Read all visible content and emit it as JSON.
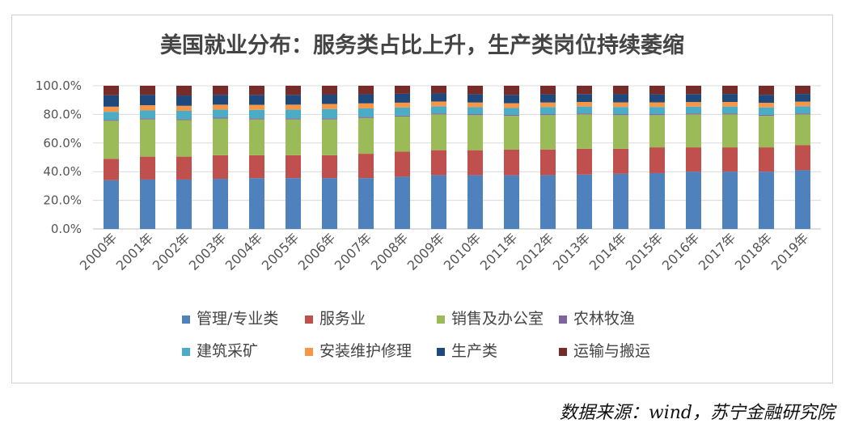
{
  "chart_data": {
    "type": "bar",
    "stacked": true,
    "percent": true,
    "title": "美国就业分布：服务类占比上升，生产类岗位持续萎缩",
    "categories": [
      "2000年",
      "2001年",
      "2002年",
      "2003年",
      "2004年",
      "2005年",
      "2006年",
      "2007年",
      "2008年",
      "2009年",
      "2010年",
      "2011年",
      "2012年",
      "2013年",
      "2014年",
      "2015年",
      "2016年",
      "2017年",
      "2018年",
      "2019年"
    ],
    "yticks": [
      "0.0%",
      "20.0%",
      "40.0%",
      "60.0%",
      "80.0%",
      "100.0%"
    ],
    "ylim": [
      0,
      100
    ],
    "grid": true,
    "legend_position": "bottom",
    "series": [
      {
        "name": "管理/专业类",
        "color": "#4f81bd",
        "values": [
          34,
          34.5,
          34.5,
          35,
          35.5,
          35.5,
          35.5,
          35.5,
          36.5,
          37.5,
          37.5,
          37.5,
          37.5,
          38,
          38.5,
          39,
          40,
          40,
          40,
          41
        ]
      },
      {
        "name": "服务业",
        "color": "#c0504d",
        "values": [
          15,
          16,
          16,
          16.5,
          16,
          16,
          16,
          17,
          17.5,
          17.5,
          17.5,
          18,
          18,
          18,
          17.5,
          18,
          17,
          17,
          17,
          17.5
        ]
      },
      {
        "name": "销售及办公室",
        "color": "#9bbb59",
        "values": [
          26.5,
          26,
          25.5,
          25.5,
          25,
          25,
          25,
          25,
          24.5,
          25,
          24.5,
          23.5,
          24,
          24,
          23.5,
          22.5,
          23,
          23,
          22,
          21.5
        ]
      },
      {
        "name": "农林牧渔",
        "color": "#8064a2",
        "values": [
          0.7,
          0.7,
          0.7,
          0.7,
          0.7,
          0.7,
          0.7,
          0.7,
          0.7,
          0.7,
          0.7,
          0.7,
          0.7,
          0.7,
          0.7,
          0.7,
          0.7,
          0.7,
          0.7,
          0.7
        ]
      },
      {
        "name": "建筑采矿",
        "color": "#4bacc6",
        "values": [
          5.6,
          5.6,
          5.8,
          5.6,
          6,
          6.1,
          6.6,
          6,
          5.6,
          5,
          4.8,
          4.8,
          4.9,
          4.8,
          5,
          5,
          4.7,
          4.8,
          5.2,
          5
        ]
      },
      {
        "name": "安装维护修理",
        "color": "#f79646",
        "values": [
          3.6,
          3.6,
          3.5,
          3.5,
          3.5,
          3.5,
          3.5,
          3.5,
          3.4,
          3.3,
          3.3,
          3.3,
          3.2,
          3.2,
          3.2,
          3.2,
          3.2,
          3.2,
          3.2,
          3.2
        ]
      },
      {
        "name": "生产类",
        "color": "#1f497d",
        "values": [
          8,
          7.3,
          7.2,
          6.9,
          6.9,
          6.8,
          6.5,
          6.4,
          6.2,
          5.6,
          5.7,
          5.8,
          5.7,
          5.5,
          5.7,
          5.6,
          5.6,
          5.6,
          5.6,
          5.4
        ]
      },
      {
        "name": "运输与搬运",
        "color": "#772c2a",
        "values": [
          6.6,
          6.3,
          6.8,
          6.3,
          6.4,
          6.4,
          6.2,
          5.9,
          5.6,
          5.4,
          6,
          6.4,
          6,
          5.8,
          5.9,
          6,
          5.8,
          5.7,
          6.3,
          5.7
        ]
      }
    ]
  },
  "source": "数据来源：wind，苏宁金融研究院"
}
